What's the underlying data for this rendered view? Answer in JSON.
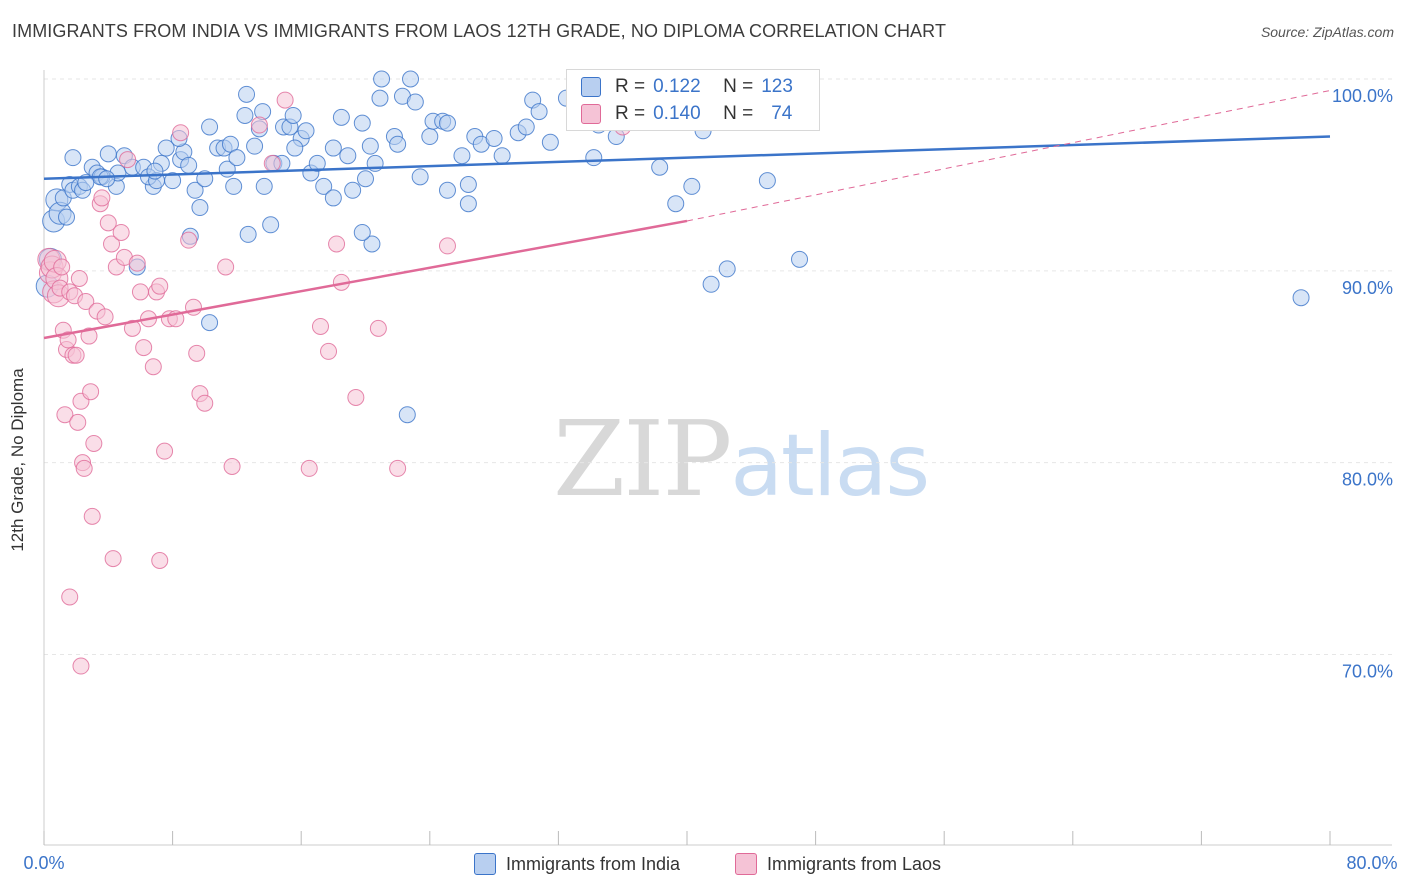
{
  "title": "IMMIGRANTS FROM INDIA VS IMMIGRANTS FROM LAOS 12TH GRADE, NO DIPLOMA CORRELATION CHART",
  "source": "Source: ZipAtlas.com",
  "watermark": {
    "zip": "ZIP",
    "atlas": "atlas"
  },
  "colors": {
    "india": "#3b74c9",
    "india_fill": "#b8cff0",
    "laos": "#e06a98",
    "laos_fill": "#f5c3d6",
    "grid": "#e6e6e6",
    "tick_text": "#3b74c9"
  },
  "legend": {
    "india": {
      "r_label": "R =",
      "r_value": "0.122",
      "n_label": "N =",
      "n_value": "123"
    },
    "laos": {
      "r_label": "R =",
      "r_value": "0.140",
      "n_label": "N =",
      "n_value": "74"
    }
  },
  "chart_data": {
    "type": "scatter",
    "xlabel": "",
    "ylabel": "12th Grade, No Diploma",
    "xlim": [
      0,
      80
    ],
    "ylim": [
      60,
      100
    ],
    "x_tick_labels": [
      "0.0%",
      "80.0%"
    ],
    "y_ticks": [
      70,
      80,
      90,
      100
    ],
    "y_tick_labels": [
      "70.0%",
      "80.0%",
      "90.0%",
      "100.0%"
    ],
    "grid": true,
    "legend_position": "bottom",
    "series": [
      {
        "name": "Immigrants from India",
        "color": "#3b74c9",
        "trend": {
          "x": [
            0,
            80
          ],
          "y": [
            94.8,
            97.0
          ]
        },
        "points": [
          [
            0.2,
            89.2
          ],
          [
            0.4,
            90.6
          ],
          [
            0.6,
            92.6
          ],
          [
            0.8,
            93.7
          ],
          [
            1.0,
            93.0
          ],
          [
            1.2,
            93.8
          ],
          [
            1.4,
            92.8
          ],
          [
            1.6,
            94.5
          ],
          [
            1.8,
            94.2
          ],
          [
            2.2,
            94.4
          ],
          [
            2.4,
            94.2
          ],
          [
            3.0,
            95.4
          ],
          [
            3.3,
            95.1
          ],
          [
            3.6,
            94.9
          ],
          [
            4.0,
            96.1
          ],
          [
            4.5,
            94.4
          ],
          [
            4.6,
            95.1
          ],
          [
            5.0,
            96.0
          ],
          [
            5.5,
            95.4
          ],
          [
            6.2,
            95.4
          ],
          [
            6.8,
            94.4
          ],
          [
            6.5,
            94.9
          ],
          [
            7.0,
            94.7
          ],
          [
            7.3,
            95.6
          ],
          [
            7.6,
            96.4
          ],
          [
            8.0,
            94.7
          ],
          [
            8.5,
            95.8
          ],
          [
            8.7,
            96.2
          ],
          [
            8.4,
            96.9
          ],
          [
            9.0,
            95.5
          ],
          [
            9.4,
            94.2
          ],
          [
            9.7,
            93.3
          ],
          [
            9.1,
            91.8
          ],
          [
            10.0,
            94.8
          ],
          [
            10.3,
            97.5
          ],
          [
            10.8,
            96.4
          ],
          [
            11.2,
            96.4
          ],
          [
            11.6,
            96.6
          ],
          [
            11.4,
            95.3
          ],
          [
            11.8,
            94.4
          ],
          [
            12.0,
            95.9
          ],
          [
            12.6,
            99.2
          ],
          [
            12.5,
            98.1
          ],
          [
            13.1,
            96.5
          ],
          [
            13.4,
            97.4
          ],
          [
            13.6,
            98.3
          ],
          [
            13.7,
            94.4
          ],
          [
            14.1,
            92.4
          ],
          [
            14.3,
            95.6
          ],
          [
            14.8,
            95.6
          ],
          [
            14.9,
            97.5
          ],
          [
            15.3,
            97.5
          ],
          [
            15.5,
            98.1
          ],
          [
            16.0,
            96.9
          ],
          [
            16.3,
            97.3
          ],
          [
            16.6,
            95.1
          ],
          [
            17.0,
            95.6
          ],
          [
            17.4,
            94.4
          ],
          [
            18.0,
            96.4
          ],
          [
            18.5,
            98.0
          ],
          [
            18.9,
            96.0
          ],
          [
            19.2,
            94.2
          ],
          [
            19.8,
            97.7
          ],
          [
            20.0,
            94.8
          ],
          [
            20.3,
            96.5
          ],
          [
            20.6,
            95.6
          ],
          [
            20.9,
            99.0
          ],
          [
            21.0,
            100.0
          ],
          [
            21.8,
            97.0
          ],
          [
            22.0,
            96.6
          ],
          [
            22.3,
            99.1
          ],
          [
            22.8,
            100.0
          ],
          [
            23.1,
            98.8
          ],
          [
            23.4,
            94.9
          ],
          [
            24.0,
            97.0
          ],
          [
            24.2,
            97.8
          ],
          [
            24.8,
            97.8
          ],
          [
            25.1,
            97.7
          ],
          [
            26.0,
            96.0
          ],
          [
            26.4,
            94.5
          ],
          [
            26.8,
            97.0
          ],
          [
            27.2,
            96.6
          ],
          [
            28.0,
            96.9
          ],
          [
            28.5,
            96.0
          ],
          [
            29.5,
            97.2
          ],
          [
            30.0,
            97.5
          ],
          [
            30.4,
            98.9
          ],
          [
            30.8,
            98.3
          ],
          [
            31.5,
            96.7
          ],
          [
            32.5,
            99.0
          ],
          [
            33.0,
            98.2
          ],
          [
            33.8,
            99.0
          ],
          [
            34.5,
            97.6
          ],
          [
            34.2,
            95.9
          ],
          [
            35.6,
            97.0
          ],
          [
            35.9,
            100.0
          ],
          [
            37.2,
            99.1
          ],
          [
            38.0,
            98.9
          ],
          [
            38.3,
            95.4
          ],
          [
            39.3,
            93.5
          ],
          [
            40.3,
            94.4
          ],
          [
            40.0,
            99.1
          ],
          [
            41.0,
            97.3
          ],
          [
            42.5,
            90.1
          ],
          [
            41.5,
            89.3
          ],
          [
            45.0,
            94.7
          ],
          [
            47.0,
            90.6
          ],
          [
            78.2,
            88.6
          ],
          [
            20.4,
            91.4
          ],
          [
            22.6,
            82.5
          ],
          [
            10.3,
            87.3
          ],
          [
            15.6,
            96.4
          ],
          [
            18.0,
            93.8
          ],
          [
            25.1,
            94.2
          ],
          [
            26.4,
            93.5
          ],
          [
            19.8,
            92.0
          ],
          [
            12.7,
            91.9
          ],
          [
            5.8,
            90.2
          ],
          [
            3.5,
            94.9
          ],
          [
            6.9,
            95.2
          ],
          [
            2.6,
            94.6
          ],
          [
            1.8,
            95.9
          ],
          [
            3.9,
            94.8
          ]
        ]
      },
      {
        "name": "Immigrants from Laos",
        "color": "#e06a98",
        "trend": {
          "x": [
            0,
            40
          ],
          "y": [
            86.5,
            92.6
          ]
        },
        "trend_dashed": {
          "x": [
            40,
            80
          ],
          "y": [
            92.6,
            99.4
          ]
        },
        "points": [
          [
            0.3,
            90.6
          ],
          [
            0.4,
            89.9
          ],
          [
            0.5,
            90.2
          ],
          [
            0.6,
            88.9
          ],
          [
            0.7,
            90.5
          ],
          [
            0.8,
            89.6
          ],
          [
            0.9,
            88.7
          ],
          [
            1.0,
            89.1
          ],
          [
            1.1,
            90.2
          ],
          [
            1.2,
            86.9
          ],
          [
            1.3,
            82.5
          ],
          [
            1.4,
            85.9
          ],
          [
            1.5,
            86.4
          ],
          [
            1.6,
            88.9
          ],
          [
            1.8,
            85.6
          ],
          [
            1.9,
            88.7
          ],
          [
            2.0,
            85.6
          ],
          [
            2.1,
            82.1
          ],
          [
            2.2,
            89.6
          ],
          [
            2.3,
            83.2
          ],
          [
            2.4,
            80.0
          ],
          [
            2.5,
            79.7
          ],
          [
            2.6,
            88.4
          ],
          [
            2.8,
            86.6
          ],
          [
            2.9,
            83.7
          ],
          [
            3.0,
            77.2
          ],
          [
            3.1,
            81.0
          ],
          [
            3.3,
            87.9
          ],
          [
            3.5,
            93.5
          ],
          [
            3.6,
            93.8
          ],
          [
            3.8,
            87.6
          ],
          [
            4.0,
            92.5
          ],
          [
            4.2,
            91.4
          ],
          [
            4.5,
            90.2
          ],
          [
            4.8,
            92.0
          ],
          [
            5.0,
            90.7
          ],
          [
            5.2,
            95.8
          ],
          [
            5.5,
            87.0
          ],
          [
            5.8,
            90.4
          ],
          [
            6.0,
            88.9
          ],
          [
            6.2,
            86.0
          ],
          [
            6.5,
            87.5
          ],
          [
            6.8,
            85.0
          ],
          [
            7.0,
            88.9
          ],
          [
            7.2,
            89.2
          ],
          [
            7.5,
            80.6
          ],
          [
            7.8,
            87.5
          ],
          [
            8.2,
            87.5
          ],
          [
            8.5,
            97.2
          ],
          [
            9.0,
            91.6
          ],
          [
            9.3,
            88.1
          ],
          [
            9.5,
            85.7
          ],
          [
            9.7,
            83.6
          ],
          [
            10.0,
            83.1
          ],
          [
            11.3,
            90.2
          ],
          [
            11.7,
            79.8
          ],
          [
            13.4,
            97.6
          ],
          [
            14.2,
            95.6
          ],
          [
            15.0,
            98.9
          ],
          [
            16.5,
            79.7
          ],
          [
            17.2,
            87.1
          ],
          [
            17.7,
            85.8
          ],
          [
            18.2,
            91.4
          ],
          [
            18.5,
            89.4
          ],
          [
            19.4,
            83.4
          ],
          [
            20.8,
            87.0
          ],
          [
            22.0,
            79.7
          ],
          [
            25.1,
            91.3
          ],
          [
            34.0,
            99.0
          ],
          [
            36.0,
            97.5
          ],
          [
            1.6,
            73.0
          ],
          [
            2.3,
            69.4
          ],
          [
            4.3,
            75.0
          ],
          [
            7.2,
            74.9
          ]
        ]
      }
    ]
  },
  "bottom_legend": {
    "india": "Immigrants from India",
    "laos": "Immigrants from Laos"
  }
}
